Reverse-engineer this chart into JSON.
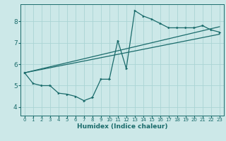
{
  "xlabel": "Humidex (Indice chaleur)",
  "bg_color": "#cce8e8",
  "line_color": "#1a6b6b",
  "grid_color": "#aad4d4",
  "xlim": [
    -0.5,
    23.5
  ],
  "ylim": [
    3.6,
    8.8
  ],
  "xticks": [
    0,
    1,
    2,
    3,
    4,
    5,
    6,
    7,
    8,
    9,
    10,
    11,
    12,
    13,
    14,
    15,
    16,
    17,
    18,
    19,
    20,
    21,
    22,
    23
  ],
  "yticks": [
    4,
    5,
    6,
    7,
    8
  ],
  "line1_x": [
    0,
    1,
    2,
    3,
    4,
    5,
    6,
    7,
    8,
    9,
    10,
    11,
    12,
    13,
    14,
    15,
    16,
    17,
    18,
    19,
    20,
    21,
    22,
    23
  ],
  "line1_y": [
    5.6,
    5.1,
    5.0,
    5.0,
    4.65,
    4.6,
    4.5,
    4.3,
    4.45,
    5.3,
    5.3,
    7.1,
    5.8,
    8.5,
    8.25,
    8.1,
    7.9,
    7.7,
    7.7,
    7.7,
    7.7,
    7.8,
    7.6,
    7.5
  ],
  "line2_x": [
    0,
    23
  ],
  "line2_y": [
    5.6,
    7.75
  ],
  "line3_x": [
    0,
    23
  ],
  "line3_y": [
    5.6,
    7.4
  ]
}
